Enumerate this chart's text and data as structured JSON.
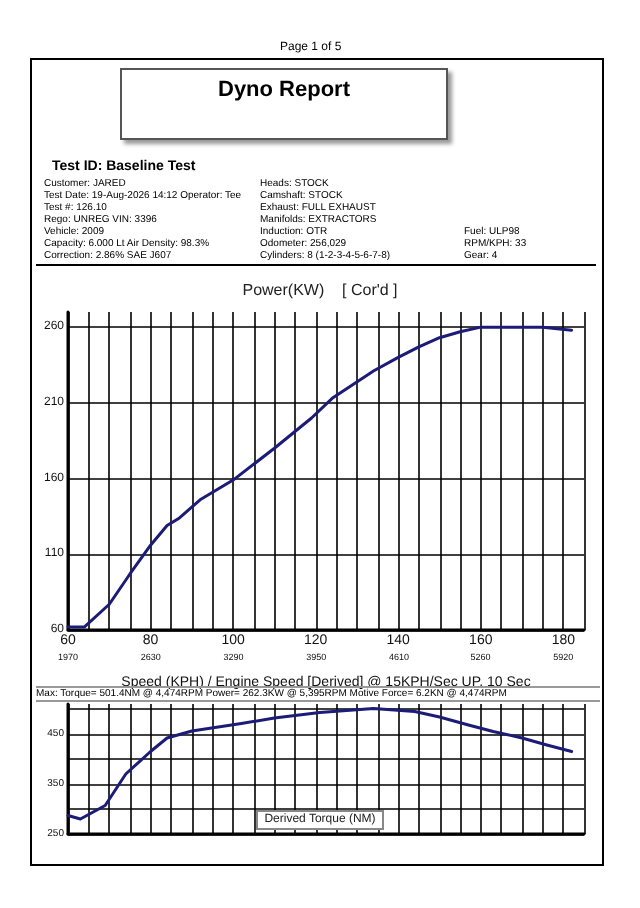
{
  "chart_data": [
    {
      "type": "other",
      "title": "Dyno Report",
      "subtitle": "Test ID: Baseline Test",
      "annotations": [
        "Page 1 of 5",
        "Customer: JARED",
        "Test Date: 19-Aug-2026 14:12   Operator: Tee",
        "Test #: 126.10",
        "Rego: UNREG   VIN: 3396",
        "Vehicle: 2009",
        "Capacity: 6.000 Lt   Air Density: 98.3%",
        "Correction: 2.86% SAE J607",
        "Heads: STOCK",
        "Camshaft: STOCK",
        "Exhaust: FULL EXHAUST",
        "Manifolds: EXTRACTORS",
        "Induction: OTR",
        "Odometer: 256,029",
        "Cylinders: 8 (1-2-3-4-5-6-7-8)",
        "Fuel: ULP98",
        "RPM/KPH: 33",
        "Gear: 4"
      ]
    },
    {
      "type": "line",
      "title": "Power(KW)    [ Cor'd ]",
      "xlabel": "Speed (KPH) / Engine Speed [Derived] @ 15KPH/Sec UP, 10 Sec",
      "x": [
        60,
        64,
        70,
        75,
        80,
        84,
        87,
        92,
        100,
        110,
        119,
        124,
        134,
        140,
        145,
        150,
        155,
        160,
        168,
        175,
        182
      ],
      "series": [
        {
          "color": "#1c1c78",
          "values": [
            62,
            62,
            77,
            97,
            116,
            129,
            134,
            146,
            159,
            180,
            200,
            213,
            231,
            240,
            247,
            253,
            257,
            260,
            260,
            260,
            258
          ]
        }
      ],
      "xlim": [
        60,
        185
      ],
      "xticks": [
        60,
        {
          "value": 65,
          "label": null
        },
        {
          "value": 70,
          "label": null
        },
        {
          "value": 75,
          "label": null
        },
        80,
        {
          "value": 85,
          "label": null
        },
        {
          "value": 90,
          "label": null
        },
        {
          "value": 95,
          "label": null
        },
        100,
        {
          "value": 105,
          "label": null
        },
        {
          "value": 110,
          "label": null
        },
        {
          "value": 115,
          "label": null
        },
        120,
        {
          "value": 125,
          "label": null
        },
        {
          "value": 130,
          "label": null
        },
        {
          "value": 135,
          "label": null
        },
        140,
        {
          "value": 145,
          "label": null
        },
        {
          "value": 150,
          "label": null
        },
        {
          "value": 155,
          "label": null
        },
        160,
        {
          "value": 165,
          "label": null
        },
        {
          "value": 170,
          "label": null
        },
        {
          "value": 175,
          "label": null
        },
        180,
        {
          "value": 185,
          "label": null
        }
      ],
      "x2lim": [
        1970,
        6085
      ],
      "x2ticks": [
        1970,
        2630,
        3290,
        3950,
        4610,
        5260,
        5920
      ],
      "ylim": [
        60,
        270
      ],
      "yticks": [
        60,
        110,
        160,
        210,
        260
      ],
      "grid": true,
      "marker": "none",
      "line_style": "solid"
    },
    {
      "type": "line",
      "title": "Derived Torque (NM)",
      "annotations": [
        "Max:  Torque= 501.4NM @ 4,474RPM  Power= 262.3KW @ 5,395RPM  Motive Force= 6.2KN @ 4,474RPM"
      ],
      "x": [
        60,
        63,
        69,
        74,
        80,
        84,
        90,
        102,
        110,
        121,
        134,
        144,
        150,
        157,
        163,
        170,
        176,
        182
      ],
      "series": [
        {
          "color": "#1c1c78",
          "values": [
            287,
            280,
            307,
            370,
            415,
            442,
            456,
            471,
            482,
            493,
            501,
            495,
            484,
            468,
            455,
            442,
            428,
            415
          ]
        }
      ],
      "xlim": [
        60,
        185
      ],
      "xticks": [
        60,
        65,
        70,
        75,
        80,
        85,
        90,
        95,
        100,
        105,
        110,
        115,
        120,
        125,
        130,
        135,
        140,
        145,
        150,
        155,
        160,
        165,
        170,
        175,
        180,
        185
      ],
      "ylim": [
        250,
        510
      ],
      "yticks": [
        250,
        {
          "value": 300,
          "label": null
        },
        350,
        {
          "value": 400,
          "label": null
        },
        450,
        {
          "value": 500,
          "label": null
        }
      ],
      "tick_labels": "y",
      "grid": true,
      "marker": "none",
      "line_style": "solid"
    }
  ]
}
